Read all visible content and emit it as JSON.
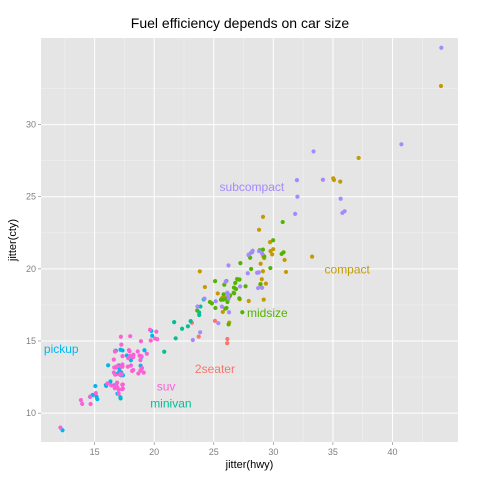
{
  "chart_data": {
    "type": "scatter",
    "title": "Fuel efficiency depends on car size",
    "xlabel": "jitter(hwy)",
    "ylabel": "jitter(cty)",
    "xlim": [
      10.5,
      45.5
    ],
    "ylim": [
      8.0,
      36.0
    ],
    "x_ticks": [
      15,
      20,
      25,
      30,
      35,
      40
    ],
    "y_ticks": [
      10,
      15,
      20,
      25,
      30
    ],
    "grid": true,
    "legend": "none",
    "colors": {
      "2seater": "#F8766D",
      "compact": "#C49A00",
      "midsize": "#53B400",
      "minivan": "#00C094",
      "pickup": "#00B6EB",
      "subcompact": "#A58AFF",
      "suv": "#FB61D7"
    },
    "label_positions": [
      {
        "class": "subcompact",
        "x": 28.2,
        "y": 25.6
      },
      {
        "class": "compact",
        "x": 36.2,
        "y": 19.9
      },
      {
        "class": "midsize",
        "x": 29.5,
        "y": 16.9
      },
      {
        "class": "pickup",
        "x": 12.2,
        "y": 14.4
      },
      {
        "class": "2seater",
        "x": 25.1,
        "y": 13.0
      },
      {
        "class": "suv",
        "x": 21.0,
        "y": 11.8
      },
      {
        "class": "minivan",
        "x": 21.4,
        "y": 10.6
      }
    ],
    "series": [
      {
        "name": "2seater",
        "points": [
          [
            26,
            15
          ],
          [
            25,
            16
          ],
          [
            26,
            15
          ],
          [
            24,
            15
          ],
          [
            23,
            16
          ]
        ]
      },
      {
        "name": "compact",
        "points": [
          [
            29,
            18
          ],
          [
            29,
            21
          ],
          [
            31,
            20
          ],
          [
            30,
            21
          ],
          [
            26,
            16
          ],
          [
            26,
            18
          ],
          [
            27,
            18
          ],
          [
            26,
            18
          ],
          [
            25,
            18
          ],
          [
            28,
            21
          ],
          [
            24,
            19
          ],
          [
            30,
            22
          ],
          [
            30,
            21
          ],
          [
            29,
            19
          ],
          [
            29,
            21
          ],
          [
            27,
            19
          ],
          [
            33,
            21
          ],
          [
            35,
            26
          ],
          [
            37,
            28
          ],
          [
            44,
            33
          ],
          [
            29,
            21
          ],
          [
            26,
            18
          ],
          [
            29,
            19
          ],
          [
            29,
            20
          ],
          [
            31,
            21
          ],
          [
            29,
            23
          ],
          [
            29,
            24
          ],
          [
            24,
            20
          ],
          [
            28,
            18
          ],
          [
            26,
            18
          ],
          [
            29,
            19
          ],
          [
            35,
            26
          ],
          [
            36,
            26
          ],
          [
            26,
            18
          ],
          [
            29,
            20
          ],
          [
            30,
            21
          ],
          [
            26,
            17
          ]
        ]
      },
      {
        "name": "midsize",
        "points": [
          [
            26,
            18
          ],
          [
            24,
            17
          ],
          [
            26,
            18
          ],
          [
            26,
            16
          ],
          [
            26,
            18
          ],
          [
            27,
            17
          ],
          [
            30,
            20
          ],
          [
            25,
            17
          ],
          [
            26,
            19
          ],
          [
            27,
            18
          ],
          [
            28,
            19
          ],
          [
            26,
            17
          ],
          [
            29,
            21
          ],
          [
            31,
            23
          ],
          [
            29,
            19
          ],
          [
            26,
            18
          ],
          [
            27,
            19
          ],
          [
            27,
            20
          ],
          [
            26,
            17
          ],
          [
            25,
            18
          ],
          [
            27,
            19
          ],
          [
            25,
            19
          ],
          [
            28,
            20
          ],
          [
            29,
            21
          ],
          [
            26,
            18
          ],
          [
            28,
            21
          ],
          [
            27,
            18
          ],
          [
            31,
            21
          ],
          [
            26,
            19
          ],
          [
            26,
            18
          ],
          [
            31,
            21
          ],
          [
            26,
            18
          ],
          [
            27,
            19
          ],
          [
            29,
            21
          ],
          [
            30,
            22
          ],
          [
            27,
            18
          ],
          [
            27,
            19
          ],
          [
            26,
            18
          ],
          [
            25,
            18
          ],
          [
            27,
            19
          ],
          [
            28,
            21
          ]
        ]
      },
      {
        "name": "minivan",
        "points": [
          [
            24,
            18
          ],
          [
            24,
            17
          ],
          [
            22,
            16
          ],
          [
            22,
            16
          ],
          [
            24,
            17
          ],
          [
            24,
            17
          ],
          [
            23,
            16
          ],
          [
            22,
            15
          ],
          [
            21,
            14
          ],
          [
            23,
            16
          ],
          [
            17,
            11
          ]
        ]
      },
      {
        "name": "pickup",
        "points": [
          [
            15,
            11
          ],
          [
            17,
            13
          ],
          [
            17,
            13
          ],
          [
            18,
            14
          ],
          [
            16,
            12
          ],
          [
            17,
            11
          ],
          [
            15,
            12
          ],
          [
            16,
            12
          ],
          [
            17,
            13
          ],
          [
            17,
            14
          ],
          [
            17,
            13
          ],
          [
            12,
            9
          ],
          [
            17,
            12
          ],
          [
            17,
            11
          ],
          [
            17,
            13
          ],
          [
            19,
            14
          ],
          [
            17,
            14
          ],
          [
            20,
            15
          ],
          [
            17,
            14
          ],
          [
            15,
            11
          ],
          [
            16,
            13
          ],
          [
            17,
            13
          ],
          [
            17,
            13
          ],
          [
            18,
            14
          ],
          [
            16,
            12
          ],
          [
            15,
            11
          ],
          [
            15,
            11
          ],
          [
            19,
            14
          ],
          [
            17,
            13
          ],
          [
            20,
            16
          ],
          [
            17,
            14
          ],
          [
            17,
            13
          ],
          [
            19,
            13
          ]
        ]
      },
      {
        "name": "subcompact",
        "points": [
          [
            26,
            18
          ],
          [
            25,
            18
          ],
          [
            28,
            21
          ],
          [
            27,
            19
          ],
          [
            29,
            19
          ],
          [
            36,
            24
          ],
          [
            36,
            24
          ],
          [
            36,
            25
          ],
          [
            44,
            35
          ],
          [
            41,
            29
          ],
          [
            29,
            21
          ],
          [
            26,
            19
          ],
          [
            29,
            19
          ],
          [
            26,
            18
          ],
          [
            28,
            21
          ],
          [
            28,
            20
          ],
          [
            29,
            21
          ],
          [
            24,
            18
          ],
          [
            24,
            17
          ],
          [
            26,
            20
          ],
          [
            29,
            20
          ],
          [
            26,
            18
          ],
          [
            28,
            21
          ],
          [
            33,
            28
          ],
          [
            32,
            26
          ],
          [
            32,
            25
          ],
          [
            34,
            26
          ],
          [
            32,
            24
          ],
          [
            29,
            20
          ],
          [
            26,
            17
          ],
          [
            24,
            16
          ],
          [
            26,
            17
          ],
          [
            23,
            15
          ],
          [
            25,
            16
          ],
          [
            26,
            18
          ]
        ]
      },
      {
        "name": "suv",
        "points": [
          [
            19,
            14
          ],
          [
            17,
            13
          ],
          [
            18,
            14
          ],
          [
            12,
            9
          ],
          [
            17,
            12
          ],
          [
            15,
            11
          ],
          [
            17,
            12
          ],
          [
            16,
            12
          ],
          [
            14,
            11
          ],
          [
            17,
            14
          ],
          [
            15,
            11
          ],
          [
            17,
            13
          ],
          [
            17,
            12
          ],
          [
            20,
            16
          ],
          [
            19,
            14
          ],
          [
            18,
            14
          ],
          [
            19,
            13
          ],
          [
            17,
            13
          ],
          [
            16,
            12
          ],
          [
            17,
            13
          ],
          [
            18,
            14
          ],
          [
            19,
            13
          ],
          [
            17,
            12
          ],
          [
            17,
            13
          ],
          [
            18,
            15
          ],
          [
            17,
            13
          ],
          [
            18,
            13
          ],
          [
            17,
            14
          ],
          [
            17,
            13
          ],
          [
            20,
            15
          ],
          [
            19,
            14
          ],
          [
            18,
            13
          ],
          [
            17,
            13
          ],
          [
            14,
            11
          ],
          [
            19,
            14
          ],
          [
            15,
            11
          ],
          [
            17,
            12
          ],
          [
            17,
            11
          ],
          [
            17,
            15
          ],
          [
            20,
            16
          ],
          [
            17,
            13
          ],
          [
            18,
            14
          ],
          [
            19,
            14
          ],
          [
            17,
            12
          ],
          [
            18,
            14
          ],
          [
            19,
            13
          ],
          [
            17,
            12
          ],
          [
            18,
            13
          ],
          [
            17,
            15
          ],
          [
            19,
            15
          ],
          [
            20,
            15
          ],
          [
            19,
            13
          ],
          [
            18,
            13
          ],
          [
            17,
            13
          ],
          [
            17,
            12
          ],
          [
            19,
            13
          ],
          [
            18,
            14
          ],
          [
            17,
            13
          ],
          [
            17,
            12
          ],
          [
            20,
            15
          ],
          [
            17,
            12
          ],
          [
            17,
            14
          ]
        ]
      }
    ]
  }
}
